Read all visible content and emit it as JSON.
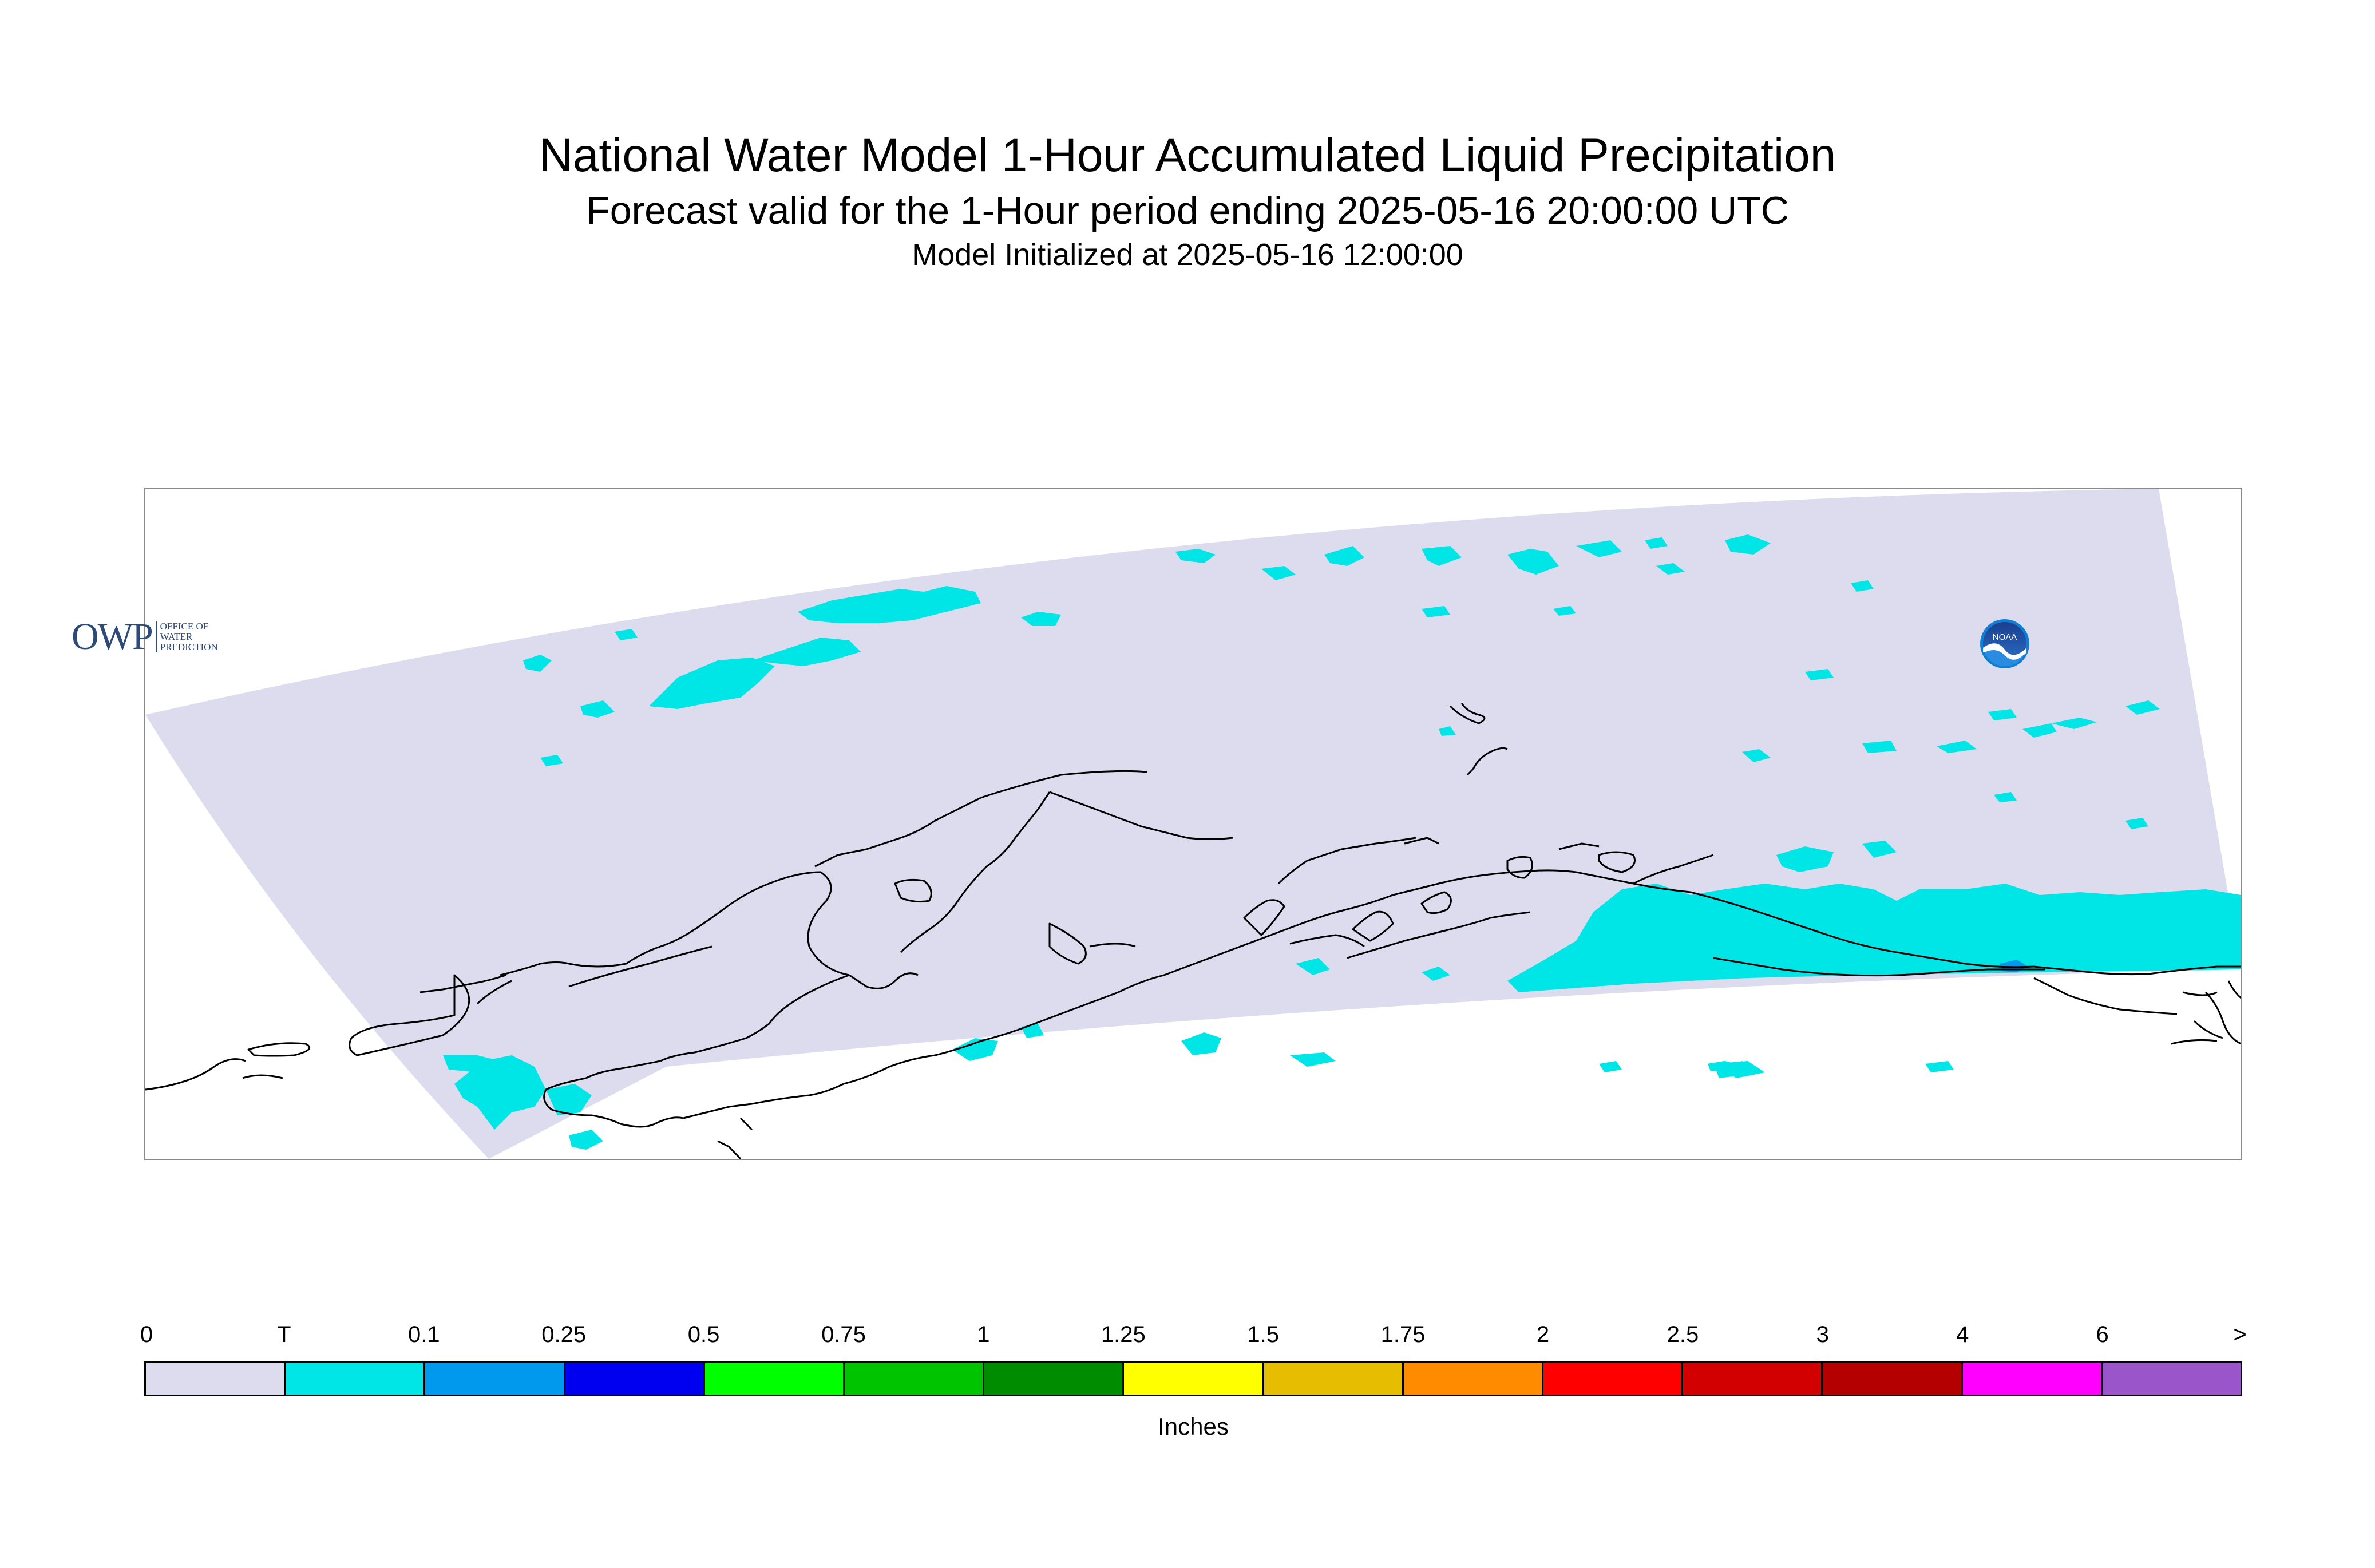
{
  "titles": {
    "main": "National Water Model 1-Hour Accumulated Liquid Precipitation",
    "subtitle": "Forecast valid for the 1-Hour period ending 2025-05-16 20:00:00 UTC",
    "initialized": "Model Initialized at 2025-05-16 12:00:00"
  },
  "map": {
    "region": "Alaska",
    "domain_fill_color": "#dcdcee",
    "precip_trace_color": "#00e5e5",
    "precip_light_color": "#0099ee",
    "coastline_color": "#000000"
  },
  "logos": {
    "owp": {
      "letters": "OWP",
      "line1": "OFFICE OF",
      "line2": "WATER",
      "line3": "PREDICTION"
    },
    "noaa": {
      "text": "NOAA"
    }
  },
  "legend": {
    "units": "Inches",
    "tick_labels": [
      "0",
      "T",
      "0.1",
      "0.25",
      "0.5",
      "0.75",
      "1",
      "1.25",
      "1.5",
      "1.75",
      "2",
      "2.5",
      "3",
      "4",
      "6",
      ">"
    ],
    "colors": [
      "#dcdcee",
      "#00e5e5",
      "#0099ee",
      "#0000f0",
      "#00ff00",
      "#00c400",
      "#008c00",
      "#ffff00",
      "#e6bd00",
      "#ff8c00",
      "#ff0000",
      "#d20000",
      "#b40000",
      "#ff00ff",
      "#9955c9"
    ]
  }
}
